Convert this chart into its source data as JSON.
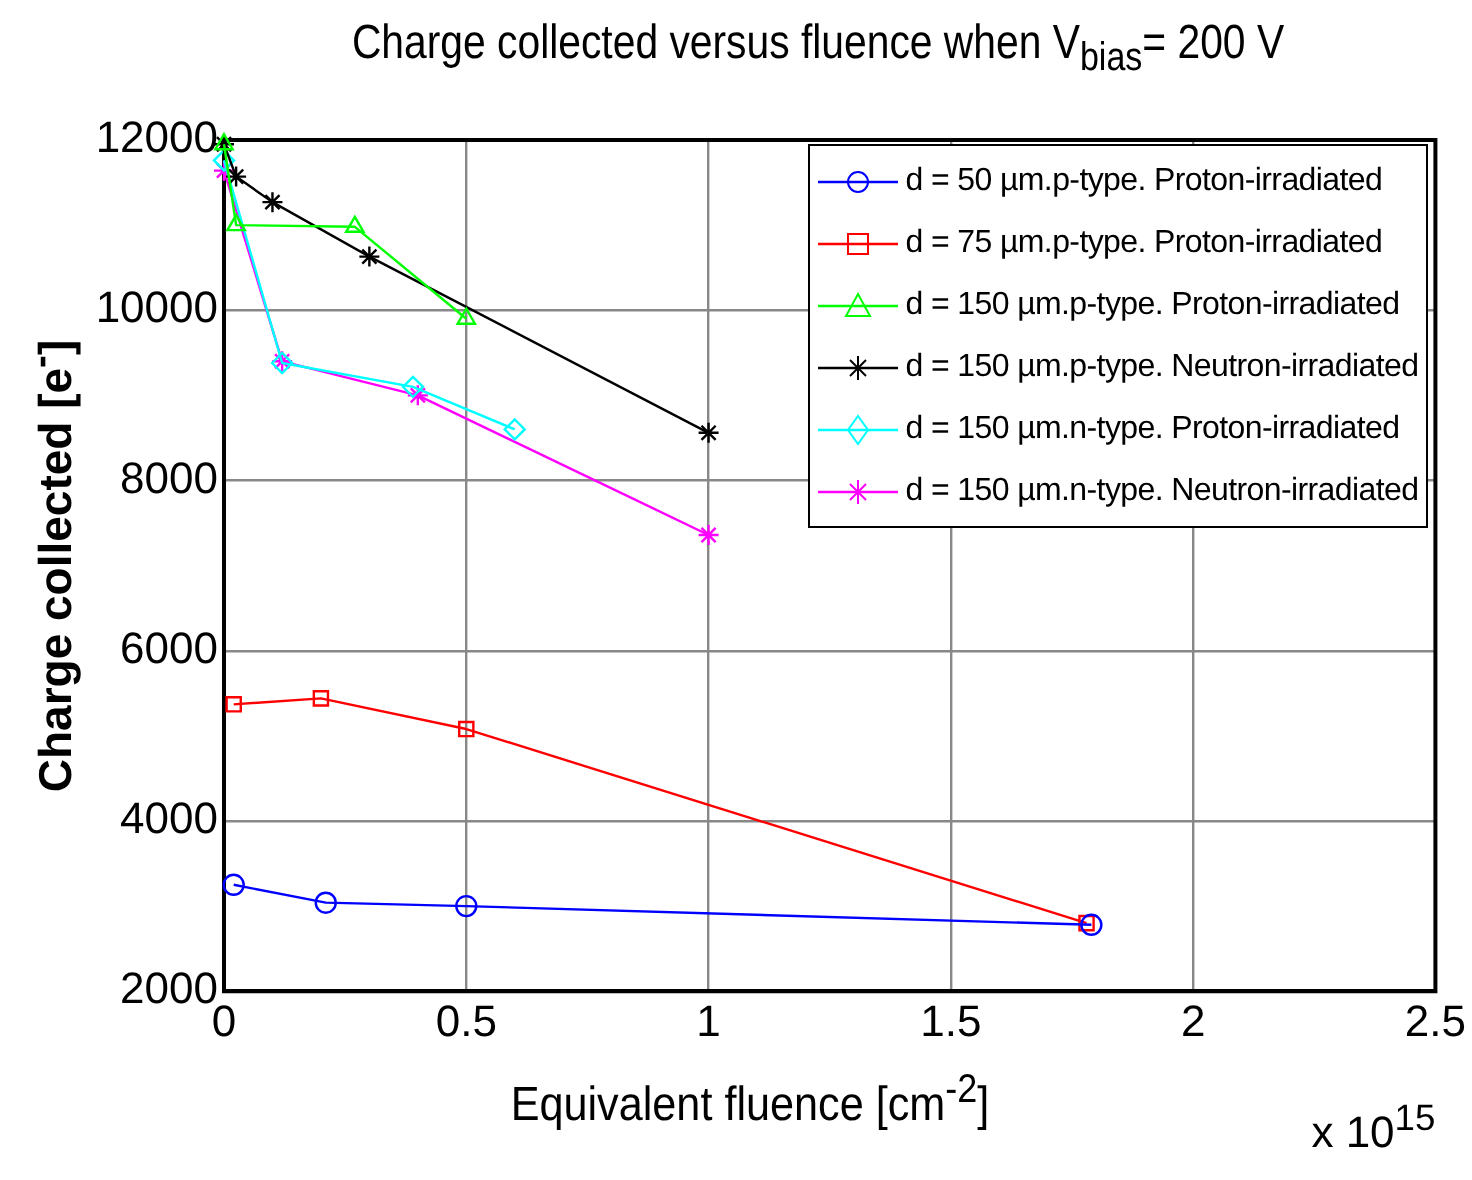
{
  "chart_data": {
    "type": "line",
    "title": "Charge collected versus fluence when V$_{bias}$= 200 V",
    "xlabel": "Equivalent fluence [cm$^{-2}$]",
    "ylabel": "Charge collected [e$^{-}$]",
    "annotations": [
      "x 10$^{15}$"
    ],
    "xlim": [
      0,
      2.5
    ],
    "xticks": [
      0,
      0.5,
      1,
      1.5,
      2,
      2.5
    ],
    "ylim": [
      2000,
      12000
    ],
    "yticks": [
      2000,
      4000,
      6000,
      8000,
      10000,
      12000
    ],
    "grid": true,
    "legend": "top right",
    "line_style": "solid",
    "series": [
      {
        "name": "d = 50 µm.p-type. Proton-irradiated",
        "color": "#0000ff",
        "marker": "circle",
        "x": [
          0.02,
          0.21,
          0.5,
          1.79
        ],
        "values": [
          3250,
          3040,
          3000,
          2780
        ]
      },
      {
        "name": "d = 75 µm.p-type. Proton-irradiated",
        "color": "#ff0000",
        "marker": "square",
        "x": [
          0.02,
          0.2,
          0.5,
          1.78
        ],
        "values": [
          5370,
          5440,
          5080,
          2800
        ]
      },
      {
        "name": "d = 150 µm.p-type. Proton-irradiated",
        "color": "#00ff00",
        "marker": "triangle",
        "x": [
          0,
          0.025,
          0.27,
          0.5
        ],
        "values": [
          11950,
          11000,
          10980,
          9900
        ]
      },
      {
        "name": "d = 150 µm.p-type. Neutron-irradiated",
        "color": "#000000",
        "marker": "cross",
        "x": [
          0,
          0.025,
          0.1,
          0.3,
          1
        ],
        "values": [
          11950,
          11570,
          11270,
          10630,
          8560
        ]
      },
      {
        "name": "d = 150 µm.n-type. Proton-irradiated",
        "color": "#00ffff",
        "marker": "diamond",
        "x": [
          0,
          0.12,
          0.39,
          0.6
        ],
        "values": [
          11760,
          9380,
          9100,
          8600
        ]
      },
      {
        "name": "d = 150 µm.n-type. Neutron-irradiated",
        "color": "#ff00ff",
        "marker": "cross",
        "x": [
          0,
          0.12,
          0.4,
          1
        ],
        "values": [
          11640,
          9400,
          9000,
          7360
        ]
      }
    ]
  }
}
